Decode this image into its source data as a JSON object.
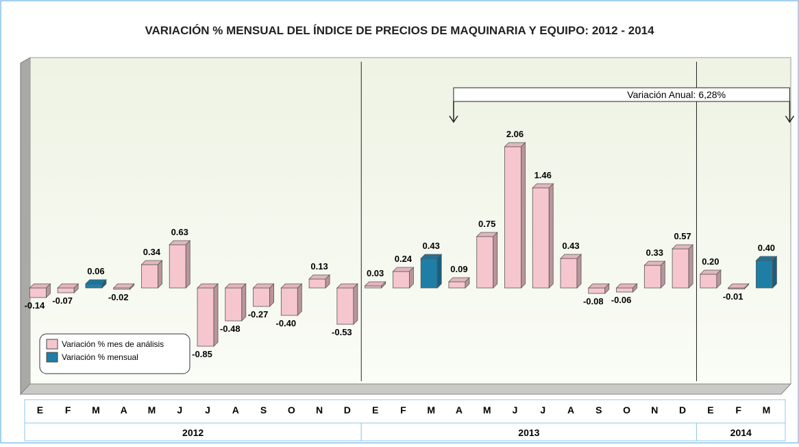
{
  "chart_data": {
    "type": "bar3d",
    "title": "VARIACIÓN % MENSUAL DEL ÍNDICE DE PRECIOS DE MAQUINARIA Y EQUIPO: 2012 - 2014",
    "categories": [
      "E",
      "F",
      "M",
      "A",
      "M",
      "J",
      "J",
      "A",
      "S",
      "O",
      "N",
      "D",
      "E",
      "F",
      "M",
      "A",
      "M",
      "J",
      "J",
      "A",
      "S",
      "O",
      "N",
      "D",
      "E",
      "F",
      "M"
    ],
    "years": [
      "2012",
      null,
      null,
      null,
      null,
      null,
      null,
      null,
      null,
      null,
      null,
      null,
      "2013",
      null,
      null,
      null,
      null,
      null,
      null,
      null,
      null,
      null,
      null,
      null,
      "2014",
      null,
      null
    ],
    "series": [
      {
        "name": "Variación % mes de análisis",
        "color": "#f6c6cf",
        "values": [
          -0.14,
          -0.07,
          null,
          -0.02,
          0.34,
          0.63,
          -0.85,
          -0.48,
          -0.27,
          -0.4,
          0.13,
          -0.53,
          0.03,
          0.24,
          null,
          0.09,
          0.75,
          2.06,
          1.46,
          0.43,
          -0.08,
          -0.06,
          0.33,
          0.57,
          0.2,
          -0.01,
          null
        ],
        "value_labels": [
          "-0.14",
          "-0.07",
          null,
          "-0.02",
          "0.34",
          "0.63",
          "-0.85",
          "-0.48",
          "-0.27",
          "-0.40",
          "0.13",
          "-0.53",
          "0.03",
          "0.24",
          null,
          "0.09",
          "0.75",
          "2.06",
          "1.46",
          "0.43",
          "-0.08",
          "-0.06",
          "0.33",
          "0.57",
          "0.20",
          "-0.01",
          null
        ]
      },
      {
        "name": "Variación % mensual",
        "color": "#1f7ea6",
        "values": [
          null,
          null,
          0.06,
          null,
          null,
          null,
          null,
          null,
          null,
          null,
          null,
          null,
          null,
          null,
          0.43,
          null,
          null,
          null,
          null,
          null,
          null,
          null,
          null,
          null,
          null,
          null,
          0.4
        ],
        "value_labels": [
          null,
          null,
          "0.06",
          null,
          null,
          null,
          null,
          null,
          null,
          null,
          null,
          null,
          null,
          null,
          "0.43",
          null,
          null,
          null,
          null,
          null,
          null,
          null,
          null,
          null,
          null,
          null,
          "0.40"
        ]
      }
    ],
    "annotation": "Variación Anual: 6,28%",
    "ylim": [
      -1.55,
      3.3
    ]
  }
}
